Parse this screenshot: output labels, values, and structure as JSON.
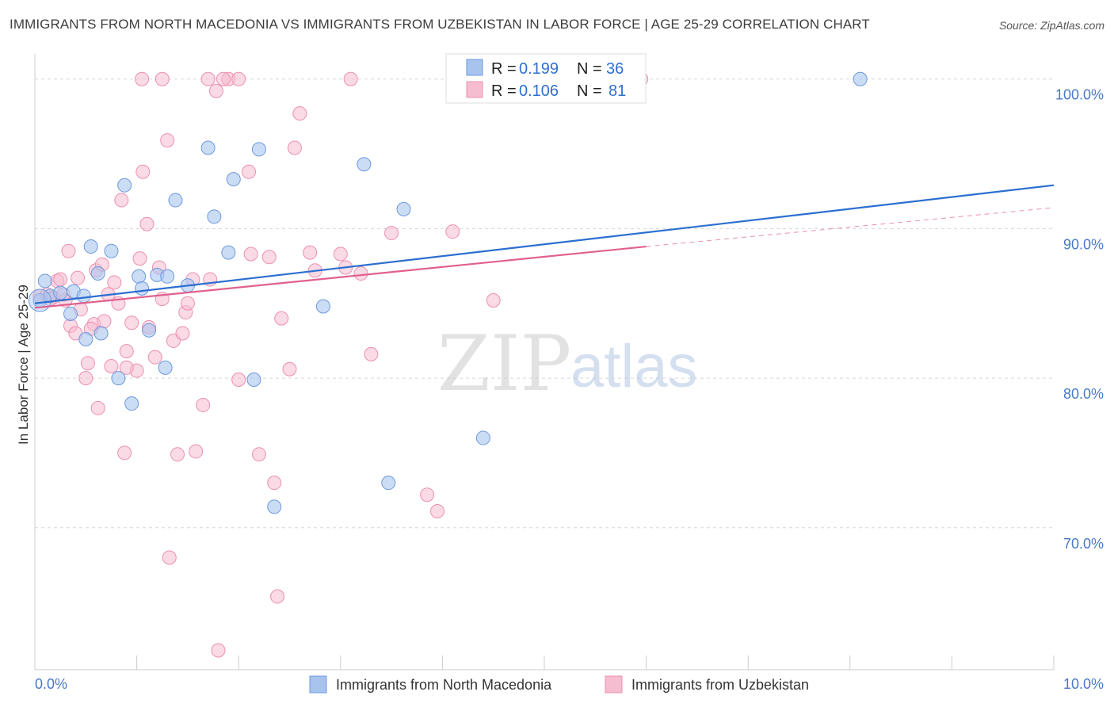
{
  "title": "IMMIGRANTS FROM NORTH MACEDONIA VS IMMIGRANTS FROM UZBEKISTAN IN LABOR FORCE | AGE 25-29 CORRELATION CHART",
  "source": "Source: ZipAtlas.com",
  "watermark": {
    "zip": "ZIP",
    "atlas": "atlas"
  },
  "colors": {
    "blue_fill": "#a8c4ee",
    "blue_stroke": "#6d9ae0",
    "blue_line": "#2b6fd0",
    "pink_fill": "#f6bcd0",
    "pink_stroke": "#ec90b0",
    "pink_line": "#e0608f",
    "grid": "#d6d6d6",
    "axis_text": "#4a79c4"
  },
  "legend": {
    "blue": {
      "r_label": "R =",
      "r_value": "0.199",
      "n_label": "N =",
      "n_value": "36"
    },
    "pink": {
      "r_label": "R =",
      "r_value": "0.106",
      "n_label": "N =",
      "n_value": "81"
    }
  },
  "chart_data": {
    "type": "scatter",
    "title": "IMMIGRANTS FROM NORTH MACEDONIA VS IMMIGRANTS FROM UZBEKISTAN IN LABOR FORCE | AGE 25-29 CORRELATION CHART",
    "xlabel": "",
    "ylabel": "In Labor Force | Age 25-29",
    "xlim": [
      0,
      10
    ],
    "ylim": [
      60.5,
      102
    ],
    "x_ticks": [
      {
        "value": 0,
        "label": "0.0%"
      },
      {
        "value": 10,
        "label": "10.0%"
      }
    ],
    "y_ticks": [
      {
        "value": 100,
        "label": "100.0%"
      },
      {
        "value": 90,
        "label": "90.0%"
      },
      {
        "value": 80,
        "label": "80.0%"
      },
      {
        "value": 70,
        "label": "70.0%"
      }
    ],
    "grid": true,
    "legend_position": "top-center",
    "series": [
      {
        "name": "Immigrants from North Macedonia",
        "color": "#a8c4ee",
        "r": 0.199,
        "n": 36,
        "trend": {
          "x": [
            0,
            10
          ],
          "y": [
            85.0,
            92.9
          ]
        },
        "points": [
          [
            0.05,
            85.2
          ],
          [
            0.1,
            86.5
          ],
          [
            0.15,
            85.5
          ],
          [
            0.25,
            85.7
          ],
          [
            0.35,
            84.3
          ],
          [
            0.38,
            85.8
          ],
          [
            0.55,
            88.8
          ],
          [
            0.62,
            87.0
          ],
          [
            0.75,
            88.5
          ],
          [
            0.65,
            83.0
          ],
          [
            0.5,
            82.6
          ],
          [
            0.82,
            80.0
          ],
          [
            0.88,
            92.9
          ],
          [
            0.95,
            78.3
          ],
          [
            1.02,
            86.8
          ],
          [
            1.05,
            86.0
          ],
          [
            1.12,
            83.2
          ],
          [
            1.2,
            86.9
          ],
          [
            1.28,
            80.7
          ],
          [
            1.3,
            86.8
          ],
          [
            1.38,
            91.9
          ],
          [
            1.5,
            86.2
          ],
          [
            1.7,
            95.4
          ],
          [
            1.76,
            90.8
          ],
          [
            1.9,
            88.4
          ],
          [
            1.95,
            93.3
          ],
          [
            2.15,
            79.9
          ],
          [
            2.2,
            95.3
          ],
          [
            2.35,
            71.4
          ],
          [
            2.83,
            84.8
          ],
          [
            3.23,
            94.3
          ],
          [
            3.47,
            73.0
          ],
          [
            3.62,
            91.3
          ],
          [
            4.4,
            76.0
          ],
          [
            8.1,
            100.0
          ],
          [
            0.48,
            85.5
          ]
        ]
      },
      {
        "name": "Immigrants from Uzbekistan",
        "color": "#f6bcd0",
        "r": 0.106,
        "n": 81,
        "trend": {
          "x": [
            0,
            6.0
          ],
          "y": [
            84.7,
            88.8
          ]
        },
        "trend_dashed": {
          "x": [
            6.0,
            10
          ],
          "y": [
            88.8,
            91.4
          ]
        },
        "points": [
          [
            0.05,
            85.5
          ],
          [
            0.12,
            85.6
          ],
          [
            0.18,
            85.4
          ],
          [
            0.22,
            86.5
          ],
          [
            0.25,
            86.6
          ],
          [
            0.3,
            85.2
          ],
          [
            0.33,
            88.5
          ],
          [
            0.35,
            83.5
          ],
          [
            0.4,
            83.0
          ],
          [
            0.45,
            84.6
          ],
          [
            0.5,
            80.0
          ],
          [
            0.52,
            81.0
          ],
          [
            0.58,
            83.6
          ],
          [
            0.6,
            87.2
          ],
          [
            0.62,
            78.0
          ],
          [
            0.66,
            87.6
          ],
          [
            0.68,
            83.8
          ],
          [
            0.72,
            85.6
          ],
          [
            0.75,
            80.8
          ],
          [
            0.78,
            86.4
          ],
          [
            0.82,
            85.0
          ],
          [
            0.85,
            91.9
          ],
          [
            0.88,
            75.0
          ],
          [
            0.9,
            81.8
          ],
          [
            0.95,
            83.7
          ],
          [
            1.0,
            80.5
          ],
          [
            1.03,
            88.0
          ],
          [
            1.06,
            93.8
          ],
          [
            1.1,
            90.3
          ],
          [
            1.12,
            83.4
          ],
          [
            1.18,
            81.4
          ],
          [
            1.22,
            87.4
          ],
          [
            1.25,
            85.3
          ],
          [
            1.3,
            95.9
          ],
          [
            1.32,
            68.0
          ],
          [
            1.36,
            82.5
          ],
          [
            1.4,
            74.9
          ],
          [
            1.45,
            83.0
          ],
          [
            1.48,
            84.4
          ],
          [
            1.55,
            86.6
          ],
          [
            1.58,
            75.1
          ],
          [
            1.65,
            78.2
          ],
          [
            1.72,
            86.6
          ],
          [
            1.78,
            99.2
          ],
          [
            1.8,
            61.8
          ],
          [
            1.9,
            100.0
          ],
          [
            2.0,
            79.9
          ],
          [
            2.1,
            93.8
          ],
          [
            2.12,
            88.3
          ],
          [
            2.2,
            74.9
          ],
          [
            2.3,
            88.1
          ],
          [
            2.35,
            73.0
          ],
          [
            2.38,
            65.4
          ],
          [
            2.42,
            84.0
          ],
          [
            2.5,
            80.6
          ],
          [
            2.55,
            95.4
          ],
          [
            2.6,
            97.7
          ],
          [
            2.7,
            88.4
          ],
          [
            2.75,
            87.2
          ],
          [
            3.0,
            88.3
          ],
          [
            3.05,
            87.4
          ],
          [
            3.2,
            87.0
          ],
          [
            3.3,
            81.6
          ],
          [
            3.5,
            89.7
          ],
          [
            3.85,
            72.2
          ],
          [
            3.95,
            71.1
          ],
          [
            4.1,
            89.8
          ],
          [
            4.5,
            85.2
          ],
          [
            1.05,
            100.0
          ],
          [
            1.25,
            100.0
          ],
          [
            1.7,
            100.0
          ],
          [
            1.85,
            100.0
          ],
          [
            2.0,
            100.0
          ],
          [
            3.1,
            100.0
          ],
          [
            5.95,
            100.0
          ],
          [
            1.5,
            85.0
          ],
          [
            0.9,
            80.7
          ],
          [
            0.55,
            83.3
          ],
          [
            0.42,
            86.7
          ],
          [
            0.28,
            85.6
          ],
          [
            0.15,
            85.3
          ]
        ]
      }
    ]
  }
}
